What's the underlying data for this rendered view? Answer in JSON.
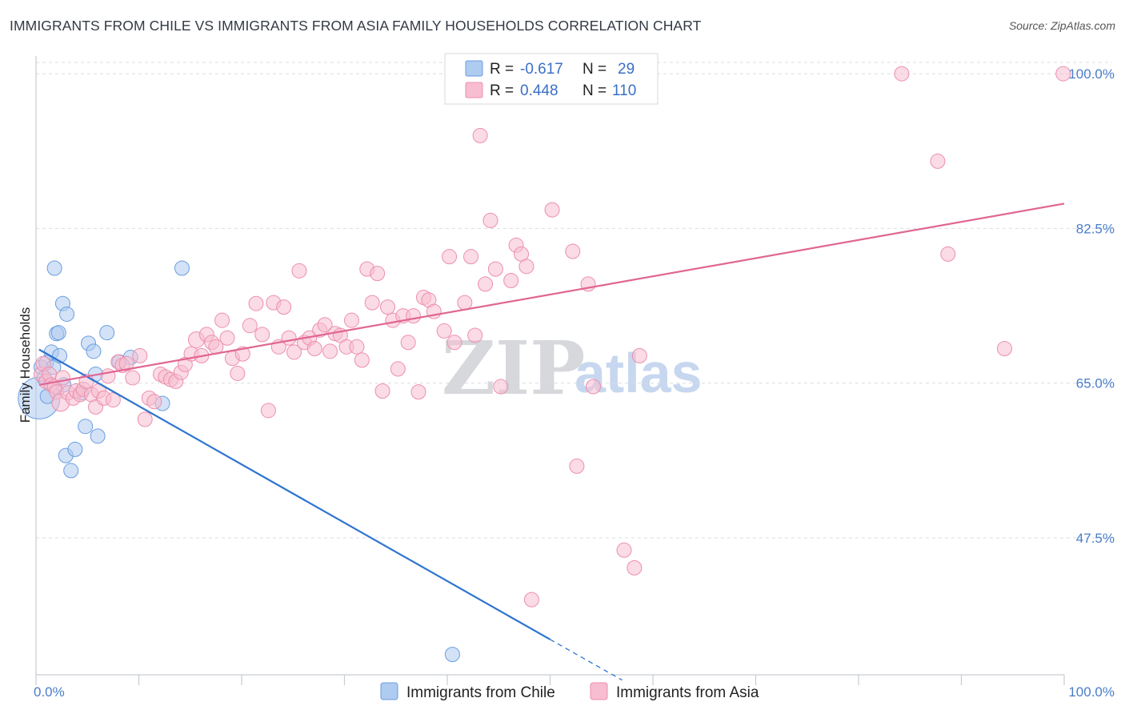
{
  "header": {
    "title": "IMMIGRANTS FROM CHILE VS IMMIGRANTS FROM ASIA FAMILY HOUSEHOLDS CORRELATION CHART",
    "source": "Source: ZipAtlas.com"
  },
  "watermark": {
    "zip": "ZIP",
    "atlas": "atlas"
  },
  "legend_top": {
    "r_label": "R =",
    "n_label": "N =",
    "chile": {
      "r": "-0.617",
      "n": "29"
    },
    "asia": {
      "r": "0.448",
      "n": "110"
    }
  },
  "colors": {
    "chile_fill": "#aecbf0",
    "chile_stroke": "#6a9ee0",
    "chile_line": "#2f74d0",
    "asia_fill": "#f7bdd0",
    "asia_stroke": "#ec8fae",
    "asia_line": "#e06693",
    "grid": "#d9dde3",
    "tick_text": "#4a7dc9"
  },
  "chart_data": {
    "type": "scatter",
    "title": "IMMIGRANTS FROM CHILE VS IMMIGRANTS FROM ASIA FAMILY HOUSEHOLDS CORRELATION CHART",
    "xlabel": "",
    "ylabel": "Family Households",
    "xlim": [
      0,
      100
    ],
    "ylim": [
      32,
      102
    ],
    "x_tick_labels": [
      "0.0%",
      "100.0%"
    ],
    "y_ticks": [
      {
        "value": 47.5,
        "label": "47.5%"
      },
      {
        "value": 65.0,
        "label": "65.0%"
      },
      {
        "value": 82.5,
        "label": "82.5%"
      },
      {
        "value": 100.0,
        "label": "100.0%"
      }
    ],
    "grid": true,
    "legend_placement": "top-center",
    "series": [
      {
        "name": "Immigrants from Chile",
        "r": -0.617,
        "n": 29,
        "trend": {
          "x0": 0.3,
          "y0": 68.8,
          "x1": 50.0,
          "y1": 36.0,
          "dash_to_x": 57.0,
          "dash_to_y": 31.4
        },
        "points": [
          [
            0.3,
            63.3,
            26
          ],
          [
            0.5,
            66.8,
            9
          ],
          [
            0.8,
            65.6,
            9
          ],
          [
            1.0,
            67.3,
            9
          ],
          [
            1.1,
            63.5,
            9
          ],
          [
            1.5,
            68.5,
            9
          ],
          [
            1.7,
            66.8,
            9
          ],
          [
            1.8,
            78.0,
            9
          ],
          [
            2.0,
            70.6,
            9
          ],
          [
            2.2,
            70.7,
            9
          ],
          [
            2.3,
            68.1,
            9
          ],
          [
            2.7,
            64.8,
            9
          ],
          [
            2.6,
            74.0,
            9
          ],
          [
            2.9,
            56.8,
            9
          ],
          [
            3.0,
            72.8,
            9
          ],
          [
            3.4,
            55.1,
            9
          ],
          [
            3.8,
            57.5,
            9
          ],
          [
            4.4,
            63.9,
            9
          ],
          [
            4.8,
            60.1,
            9
          ],
          [
            5.1,
            69.5,
            9
          ],
          [
            5.6,
            68.6,
            9
          ],
          [
            5.8,
            66.0,
            9
          ],
          [
            6.0,
            59.0,
            9
          ],
          [
            6.9,
            70.7,
            9
          ],
          [
            8.1,
            67.4,
            9
          ],
          [
            9.2,
            67.9,
            9
          ],
          [
            12.3,
            62.7,
            9
          ],
          [
            14.2,
            78.0,
            9
          ],
          [
            40.5,
            34.3,
            9
          ]
        ]
      },
      {
        "name": "Immigrants from Asia",
        "r": 0.448,
        "n": 110,
        "trend": {
          "x0": 0.3,
          "y0": 64.8,
          "x1": 100.0,
          "y1": 85.3
        },
        "points": [
          [
            0.5,
            66.0,
            9
          ],
          [
            0.7,
            67.2,
            9
          ],
          [
            1.0,
            65.2,
            9
          ],
          [
            1.3,
            66.0,
            9
          ],
          [
            1.5,
            64.8,
            9
          ],
          [
            1.8,
            64.6,
            9
          ],
          [
            2.0,
            64.0,
            9
          ],
          [
            2.4,
            62.8,
            11
          ],
          [
            2.6,
            65.6,
            9
          ],
          [
            3.1,
            63.9,
            9
          ],
          [
            3.6,
            63.3,
            9
          ],
          [
            3.9,
            64.1,
            9
          ],
          [
            4.3,
            63.7,
            9
          ],
          [
            4.6,
            64.3,
            9
          ],
          [
            4.9,
            65.2,
            9
          ],
          [
            5.4,
            63.7,
            9
          ],
          [
            5.8,
            62.3,
            9
          ],
          [
            6.1,
            64.1,
            9
          ],
          [
            6.6,
            63.3,
            9
          ],
          [
            7.0,
            65.8,
            9
          ],
          [
            7.5,
            63.1,
            9
          ],
          [
            8.0,
            67.4,
            9
          ],
          [
            8.4,
            67.0,
            9
          ],
          [
            8.8,
            67.2,
            9
          ],
          [
            9.4,
            65.6,
            9
          ],
          [
            10.1,
            68.1,
            9
          ],
          [
            10.6,
            60.9,
            9
          ],
          [
            11.0,
            63.3,
            9
          ],
          [
            11.5,
            62.9,
            9
          ],
          [
            12.1,
            66.0,
            9
          ],
          [
            12.6,
            65.7,
            9
          ],
          [
            13.1,
            65.4,
            9
          ],
          [
            13.6,
            65.2,
            9
          ],
          [
            14.1,
            66.2,
            9
          ],
          [
            14.5,
            67.1,
            9
          ],
          [
            15.1,
            68.3,
            9
          ],
          [
            15.6,
            69.9,
            10
          ],
          [
            16.1,
            68.1,
            9
          ],
          [
            16.6,
            70.5,
            9
          ],
          [
            17.1,
            69.6,
            9
          ],
          [
            17.5,
            69.1,
            9
          ],
          [
            18.1,
            72.1,
            9
          ],
          [
            18.6,
            70.1,
            9
          ],
          [
            19.1,
            67.8,
            9
          ],
          [
            19.6,
            66.1,
            9
          ],
          [
            20.1,
            68.3,
            9
          ],
          [
            20.8,
            71.5,
            9
          ],
          [
            21.4,
            74.0,
            9
          ],
          [
            22.0,
            70.5,
            9
          ],
          [
            22.6,
            61.9,
            9
          ],
          [
            23.1,
            74.1,
            9
          ],
          [
            23.6,
            69.1,
            9
          ],
          [
            24.1,
            73.6,
            9
          ],
          [
            24.6,
            70.1,
            9
          ],
          [
            25.1,
            68.5,
            9
          ],
          [
            25.6,
            77.7,
            9
          ],
          [
            26.1,
            69.6,
            9
          ],
          [
            26.6,
            70.1,
            9
          ],
          [
            27.1,
            68.9,
            9
          ],
          [
            27.6,
            71.0,
            9
          ],
          [
            28.1,
            71.6,
            9
          ],
          [
            28.6,
            68.6,
            9
          ],
          [
            29.1,
            70.6,
            9
          ],
          [
            29.6,
            70.4,
            9
          ],
          [
            30.2,
            69.1,
            9
          ],
          [
            30.7,
            72.1,
            9
          ],
          [
            31.2,
            69.1,
            9
          ],
          [
            31.7,
            67.6,
            9
          ],
          [
            32.2,
            77.9,
            9
          ],
          [
            32.7,
            74.1,
            9
          ],
          [
            33.2,
            77.4,
            9
          ],
          [
            33.7,
            64.1,
            9
          ],
          [
            34.2,
            73.6,
            9
          ],
          [
            34.7,
            72.1,
            9
          ],
          [
            35.2,
            66.6,
            9
          ],
          [
            35.7,
            72.6,
            9
          ],
          [
            36.2,
            69.6,
            9
          ],
          [
            36.7,
            72.6,
            9
          ],
          [
            37.2,
            64.0,
            9
          ],
          [
            37.7,
            74.7,
            9
          ],
          [
            38.2,
            74.4,
            9
          ],
          [
            38.7,
            73.1,
            9
          ],
          [
            39.7,
            70.9,
            9
          ],
          [
            40.2,
            79.3,
            9
          ],
          [
            40.7,
            69.6,
            9
          ],
          [
            41.7,
            74.1,
            9
          ],
          [
            42.3,
            79.3,
            9
          ],
          [
            42.7,
            70.4,
            9
          ],
          [
            43.2,
            93.0,
            9
          ],
          [
            43.7,
            76.2,
            9
          ],
          [
            44.2,
            83.4,
            9
          ],
          [
            44.7,
            77.9,
            9
          ],
          [
            45.2,
            64.6,
            9
          ],
          [
            46.2,
            76.6,
            9
          ],
          [
            46.7,
            80.6,
            9
          ],
          [
            47.2,
            79.6,
            9
          ],
          [
            47.7,
            78.2,
            9
          ],
          [
            48.7,
            100.0,
            9
          ],
          [
            50.2,
            84.6,
            9
          ],
          [
            52.2,
            79.9,
            9
          ],
          [
            52.6,
            55.6,
            9
          ],
          [
            53.7,
            76.2,
            9
          ],
          [
            54.2,
            64.6,
            9
          ],
          [
            57.2,
            46.1,
            9
          ],
          [
            58.7,
            68.1,
            9
          ],
          [
            58.2,
            44.1,
            9
          ],
          [
            48.2,
            40.5,
            9
          ],
          [
            84.2,
            100.0,
            9
          ],
          [
            87.7,
            90.1,
            9
          ],
          [
            94.2,
            68.9,
            9
          ],
          [
            99.9,
            100.0,
            9
          ],
          [
            88.7,
            79.6,
            9
          ]
        ]
      }
    ]
  },
  "bottom_legend": {
    "chile_label": "Immigrants from Chile",
    "asia_label": "Immigrants from Asia"
  }
}
